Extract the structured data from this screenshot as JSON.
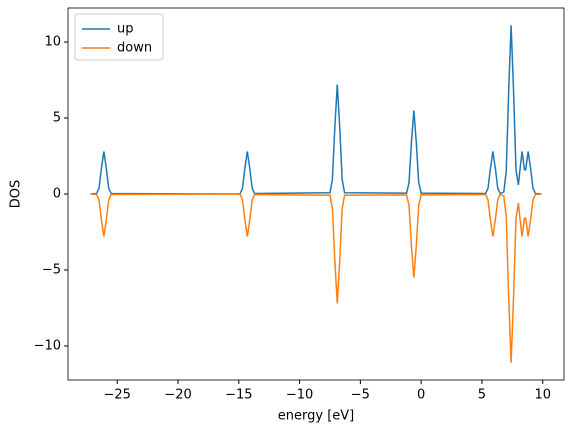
{
  "chart_data": {
    "type": "line",
    "xlabel": "energy [eV]",
    "ylabel": "DOS",
    "x": [
      -27.2,
      -26.7,
      -26.5,
      -26.3,
      -26.1,
      -25.9,
      -25.7,
      -25.5,
      -14.9,
      -14.7,
      -14.5,
      -14.3,
      -14.1,
      -13.9,
      -13.7,
      -7.5,
      -7.3,
      -7.1,
      -6.9,
      -6.7,
      -6.5,
      -6.3,
      -1.2,
      -1.0,
      -0.8,
      -0.6,
      -0.4,
      -0.2,
      0.0,
      5.3,
      5.5,
      5.7,
      5.9,
      6.1,
      6.3,
      6.5,
      6.8,
      7.0,
      7.2,
      7.4,
      7.6,
      7.8,
      8.0,
      8.1,
      8.3,
      8.5,
      8.6,
      8.8,
      9.0,
      9.2,
      9.4,
      9.9
    ],
    "series": [
      {
        "name": "up",
        "color": "#1f77b4",
        "values": [
          0,
          0.03,
          0.38,
          1.7,
          2.8,
          1.7,
          0.38,
          0.03,
          0,
          0.38,
          1.7,
          2.8,
          1.7,
          0.38,
          0.03,
          0.08,
          0.97,
          4.4,
          7.2,
          4.4,
          0.97,
          0.08,
          0.06,
          0.74,
          3.4,
          5.5,
          3.4,
          0.74,
          0.06,
          0.03,
          0.38,
          1.7,
          2.8,
          1.7,
          0.38,
          0.03,
          0.13,
          1.5,
          6.8,
          11.1,
          6.8,
          1.6,
          0.6,
          1.4,
          2.8,
          1.6,
          1.6,
          2.8,
          1.7,
          0.38,
          0.03,
          0
        ]
      },
      {
        "name": "down",
        "color": "#ff7f0e",
        "values": [
          0,
          -0.03,
          -0.38,
          -1.7,
          -2.8,
          -1.7,
          -0.38,
          -0.03,
          0,
          -0.38,
          -1.7,
          -2.8,
          -1.7,
          -0.38,
          -0.03,
          -0.08,
          -0.97,
          -4.4,
          -7.2,
          -4.4,
          -0.97,
          -0.08,
          -0.06,
          -0.74,
          -3.4,
          -5.5,
          -3.4,
          -0.74,
          -0.06,
          -0.03,
          -0.38,
          -1.7,
          -2.8,
          -1.7,
          -0.38,
          -0.03,
          -0.13,
          -1.5,
          -6.8,
          -11.1,
          -6.8,
          -1.6,
          -0.6,
          -1.4,
          -2.8,
          -1.6,
          -1.6,
          -2.8,
          -1.7,
          -0.38,
          -0.03,
          0
        ]
      }
    ],
    "xlim": [
      -29.05,
      11.75
    ],
    "ylim": [
      -12.24,
      12.24
    ],
    "xticks": [
      {
        "value": -25,
        "label": "−25"
      },
      {
        "value": -20,
        "label": "−20"
      },
      {
        "value": -15,
        "label": "−15"
      },
      {
        "value": -10,
        "label": "−10"
      },
      {
        "value": -5,
        "label": "−5"
      },
      0,
      5,
      10
    ],
    "yticks": [
      {
        "value": -10,
        "label": "−10"
      },
      {
        "value": -5,
        "label": "−5"
      },
      0,
      5,
      10
    ],
    "legend": "upper left",
    "grid": false
  }
}
